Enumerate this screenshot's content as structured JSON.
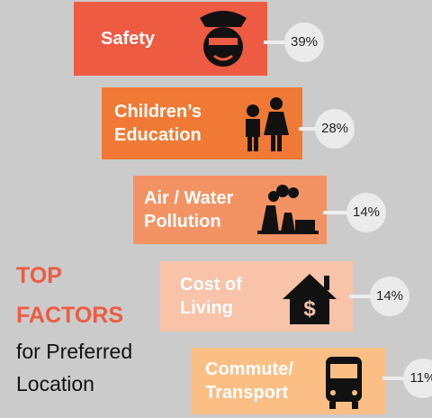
{
  "chart_data": {
    "type": "bar",
    "title": "TOP FACTORS",
    "subtitle": "for Preferred Location",
    "categories": [
      "Safety",
      "Children’s Education",
      "Air / Water Pollution",
      "Cost of Living",
      "Commute/ Transport"
    ],
    "values": [
      39,
      28,
      14,
      14,
      11
    ],
    "value_labels": [
      "39%",
      "28%",
      "14%",
      "14%",
      "11%"
    ],
    "colors": [
      "#ee5b43",
      "#f07a35",
      "#f39363",
      "#f8c3a8",
      "#fbbf86"
    ]
  }
}
